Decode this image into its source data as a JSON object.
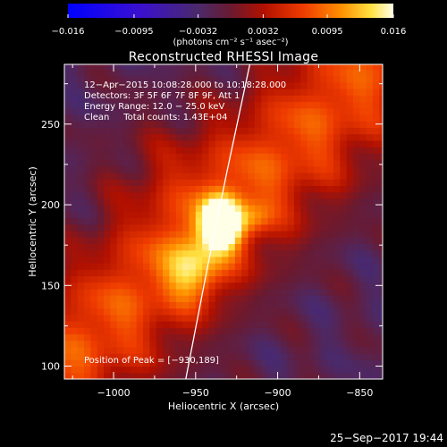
{
  "chart_data": {
    "type": "heatmap",
    "title": "Reconstructed RHESSI Image",
    "xlabel": "Heliocentric X (arcsec)",
    "ylabel": "Heliocentric Y (arcsec)",
    "xlim": [
      -1030,
      -836
    ],
    "ylim": [
      92,
      287
    ],
    "x_ticks": [
      -1000,
      -950,
      -900,
      -850
    ],
    "x_tick_labels": [
      "−1000",
      "−950",
      "−900",
      "−850"
    ],
    "y_ticks": [
      100,
      150,
      200,
      250
    ],
    "y_tick_labels": [
      "100",
      "150",
      "200",
      "250"
    ],
    "colorbar": {
      "min": -0.016,
      "max": 0.016,
      "ticks": [
        -0.016,
        -0.0095,
        -0.0032,
        0.0032,
        0.0095,
        0.016
      ],
      "tick_labels": [
        "−0.016",
        "−0.0095",
        "−0.0032",
        "0.0032",
        "0.0095",
        "0.016"
      ],
      "unit_label": "(photons cm⁻² s⁻¹ asec⁻²)"
    },
    "info_lines": [
      "12−Apr−2015 10:08:28.000 to 10:18:28.000",
      "Detectors: 3F 5F 6F 7F 8F 9F, Att 1",
      "Energy Range: 12.0 − 25.0 keV",
      "Clean     Total counts: 1.43E+04"
    ],
    "peak_label": "Position of Peak = [−930,189]",
    "peak": {
      "x": -930,
      "y": 189
    },
    "sources": [
      {
        "x": -934,
        "y": 189,
        "amp": 0.0175,
        "sx": 9,
        "sy": 11
      },
      {
        "x": -950,
        "y": 160,
        "amp": 0.008,
        "sx": 12,
        "sy": 14
      },
      {
        "x": -913,
        "y": 192,
        "amp": 0.004,
        "sx": 7,
        "sy": 7
      },
      {
        "x": -970,
        "y": 225,
        "amp": 0.002,
        "sx": 25,
        "sy": 25
      }
    ],
    "limb": [
      {
        "x": -917,
        "y": 287
      },
      {
        "x": -931,
        "y": 220
      },
      {
        "x": -943,
        "y": 160
      },
      {
        "x": -956,
        "y": 92
      }
    ]
  },
  "footer": {
    "timestamp": "25−Sep−2017 19:44"
  },
  "colors": {
    "background": "#000000",
    "foreground": "#ffffff",
    "colormap": [
      "#0000ff",
      "#5a00c8",
      "#5a2a6e",
      "#9a1010",
      "#e02000",
      "#ff6000",
      "#ffb000",
      "#ffff50",
      "#ffffe0"
    ]
  }
}
